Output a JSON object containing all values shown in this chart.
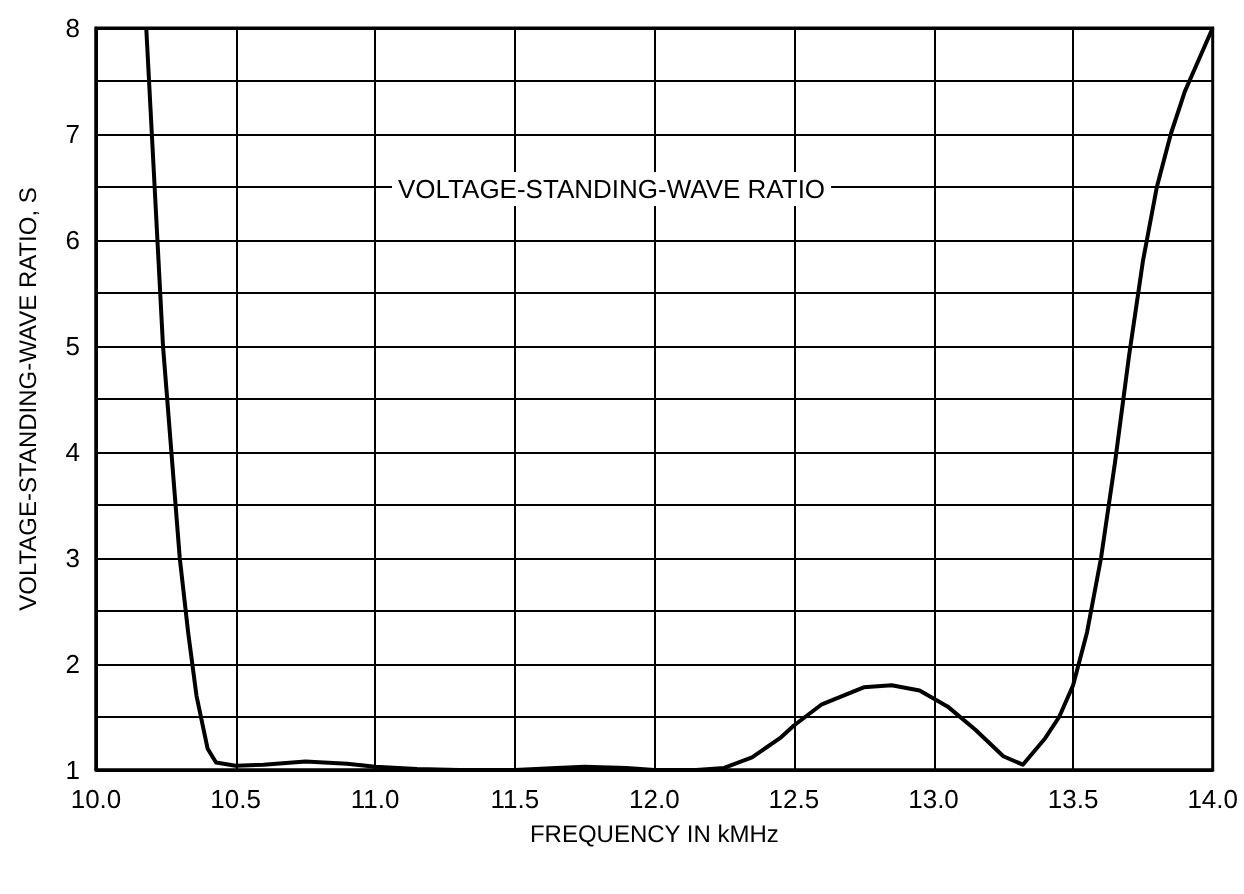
{
  "chart_data": {
    "type": "line",
    "xlabel": "FREQUENCY IN kMHz",
    "ylabel": "VOLTAGE-STANDING-WAVE RATIO, S",
    "annotations": [
      "VOLTAGE-STANDING-WAVE RATIO"
    ],
    "series": [
      {
        "color": "#000000",
        "x": [
          10.18,
          10.2,
          10.22,
          10.24,
          10.27,
          10.3,
          10.33,
          10.36,
          10.4,
          10.43,
          10.5,
          10.6,
          10.75,
          10.9,
          11.0,
          11.15,
          11.3,
          11.5,
          11.65,
          11.75,
          11.9,
          12.0,
          12.15,
          12.25,
          12.35,
          12.45,
          12.5,
          12.6,
          12.75,
          12.85,
          12.95,
          13.05,
          13.15,
          13.25,
          13.32,
          13.4,
          13.45,
          13.5,
          13.55,
          13.6,
          13.65,
          13.7,
          13.75,
          13.8,
          13.85,
          13.9,
          13.95,
          14.0
        ],
        "values": [
          8,
          7,
          6,
          5,
          4,
          3,
          2.3,
          1.7,
          1.2,
          1.07,
          1.04,
          1.05,
          1.08,
          1.06,
          1.03,
          1.01,
          1.0,
          1.0,
          1.02,
          1.03,
          1.02,
          1.0,
          1.0,
          1.02,
          1.12,
          1.3,
          1.42,
          1.62,
          1.78,
          1.8,
          1.75,
          1.6,
          1.38,
          1.13,
          1.05,
          1.3,
          1.5,
          1.8,
          2.3,
          3.0,
          3.9,
          4.9,
          5.8,
          6.5,
          7.0,
          7.4,
          7.7,
          8.0
        ]
      }
    ],
    "xlim": [
      10,
      14
    ],
    "ylim": [
      1,
      8
    ],
    "xticks": [
      {
        "value": 10,
        "label": "10.0"
      },
      10.5,
      {
        "value": 11,
        "label": "11.0"
      },
      11.5,
      {
        "value": 12,
        "label": "12.0"
      },
      12.5,
      {
        "value": 13,
        "label": "13.0"
      },
      13.5,
      {
        "value": 14,
        "label": "14.0"
      }
    ],
    "yticks": [
      1,
      {
        "value": 1.5,
        "label": null
      },
      2,
      {
        "value": 2.5,
        "label": null
      },
      3,
      {
        "value": 3.5,
        "label": null
      },
      4,
      {
        "value": 4.5,
        "label": null
      },
      5,
      {
        "value": 5.5,
        "label": null
      },
      6,
      {
        "value": 6.5,
        "label": null
      },
      7,
      {
        "value": 7.5,
        "label": null
      },
      8
    ],
    "grid": true,
    "marker": "none",
    "line_style": "solid"
  }
}
